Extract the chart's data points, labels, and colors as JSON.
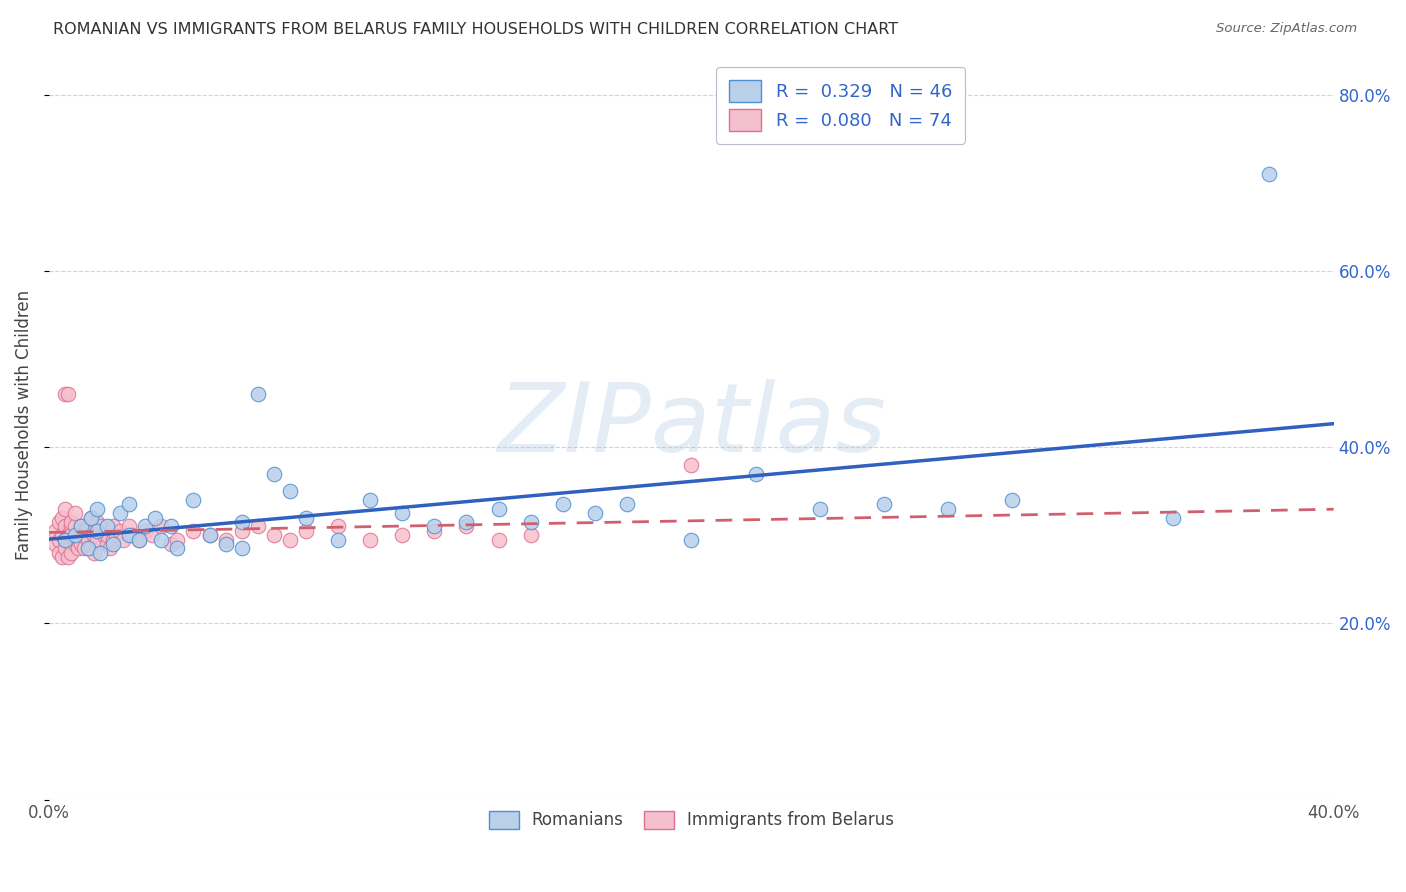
{
  "title": "ROMANIAN VS IMMIGRANTS FROM BELARUS FAMILY HOUSEHOLDS WITH CHILDREN CORRELATION CHART",
  "source": "Source: ZipAtlas.com",
  "ylabel": "Family Households with Children",
  "xlim": [
    0.0,
    0.4
  ],
  "ylim": [
    0.0,
    0.85
  ],
  "xtick_positions": [
    0.0,
    0.08,
    0.16,
    0.24,
    0.32,
    0.4
  ],
  "xtick_labels": [
    "0.0%",
    "",
    "",
    "",
    "",
    "40.0%"
  ],
  "ytick_positions": [
    0.0,
    0.2,
    0.4,
    0.6,
    0.8
  ],
  "ytick_labels_right": [
    "",
    "20.0%",
    "40.0%",
    "60.0%",
    "80.0%"
  ],
  "watermark": "ZIPatlas",
  "blue_R": 0.329,
  "blue_N": 46,
  "pink_R": 0.08,
  "pink_N": 74,
  "blue_fill_color": "#b8d0ea",
  "pink_fill_color": "#f5c0ce",
  "blue_edge_color": "#5090d0",
  "pink_edge_color": "#e07090",
  "blue_line_color": "#3060c0",
  "pink_line_color": "#d06070",
  "legend_label_blue": "Romanians",
  "legend_label_pink": "Immigrants from Belarus",
  "blue_x": [
    0.005,
    0.008,
    0.01,
    0.012,
    0.013,
    0.015,
    0.015,
    0.016,
    0.018,
    0.02,
    0.022,
    0.025,
    0.025,
    0.028,
    0.03,
    0.033,
    0.035,
    0.038,
    0.04,
    0.045,
    0.05,
    0.055,
    0.06,
    0.06,
    0.065,
    0.07,
    0.075,
    0.08,
    0.09,
    0.1,
    0.11,
    0.12,
    0.13,
    0.14,
    0.15,
    0.16,
    0.17,
    0.18,
    0.2,
    0.22,
    0.24,
    0.26,
    0.28,
    0.3,
    0.35,
    0.38
  ],
  "blue_y": [
    0.295,
    0.3,
    0.31,
    0.285,
    0.32,
    0.305,
    0.33,
    0.28,
    0.31,
    0.29,
    0.325,
    0.3,
    0.335,
    0.295,
    0.31,
    0.32,
    0.295,
    0.31,
    0.285,
    0.34,
    0.3,
    0.29,
    0.315,
    0.285,
    0.46,
    0.37,
    0.35,
    0.32,
    0.295,
    0.34,
    0.325,
    0.31,
    0.315,
    0.33,
    0.315,
    0.335,
    0.325,
    0.335,
    0.295,
    0.37,
    0.33,
    0.335,
    0.33,
    0.34,
    0.32,
    0.71
  ],
  "pink_x": [
    0.002,
    0.002,
    0.003,
    0.003,
    0.003,
    0.004,
    0.004,
    0.004,
    0.005,
    0.005,
    0.005,
    0.005,
    0.005,
    0.006,
    0.006,
    0.006,
    0.006,
    0.007,
    0.007,
    0.007,
    0.007,
    0.007,
    0.008,
    0.008,
    0.008,
    0.009,
    0.009,
    0.01,
    0.01,
    0.01,
    0.011,
    0.011,
    0.012,
    0.012,
    0.013,
    0.013,
    0.014,
    0.014,
    0.015,
    0.015,
    0.016,
    0.017,
    0.018,
    0.018,
    0.019,
    0.02,
    0.02,
    0.021,
    0.022,
    0.023,
    0.025,
    0.026,
    0.028,
    0.03,
    0.032,
    0.035,
    0.038,
    0.04,
    0.045,
    0.05,
    0.055,
    0.06,
    0.065,
    0.07,
    0.075,
    0.08,
    0.09,
    0.1,
    0.11,
    0.12,
    0.13,
    0.14,
    0.15,
    0.2
  ],
  "pink_y": [
    0.29,
    0.305,
    0.295,
    0.315,
    0.28,
    0.3,
    0.32,
    0.275,
    0.46,
    0.295,
    0.31,
    0.33,
    0.285,
    0.3,
    0.46,
    0.275,
    0.295,
    0.31,
    0.29,
    0.3,
    0.315,
    0.28,
    0.29,
    0.31,
    0.325,
    0.295,
    0.285,
    0.3,
    0.31,
    0.29,
    0.305,
    0.285,
    0.295,
    0.31,
    0.32,
    0.285,
    0.3,
    0.28,
    0.315,
    0.295,
    0.31,
    0.3,
    0.29,
    0.3,
    0.285,
    0.295,
    0.31,
    0.3,
    0.305,
    0.295,
    0.31,
    0.3,
    0.295,
    0.305,
    0.3,
    0.31,
    0.29,
    0.295,
    0.305,
    0.3,
    0.295,
    0.305,
    0.31,
    0.3,
    0.295,
    0.305,
    0.31,
    0.295,
    0.3,
    0.305,
    0.31,
    0.295,
    0.3,
    0.38
  ]
}
